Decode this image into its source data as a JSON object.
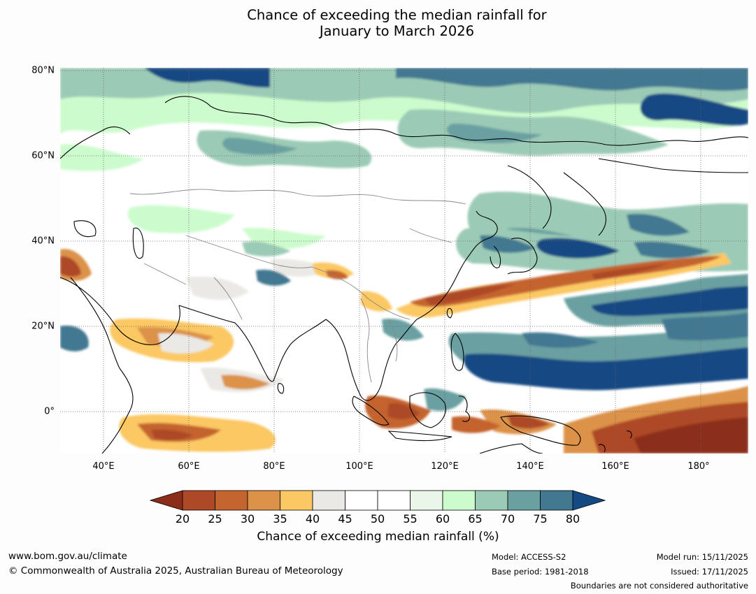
{
  "title": {
    "line1": "Chance of exceeding the median rainfall for",
    "line2": "January to March 2026"
  },
  "map": {
    "lat_labels": [
      "80°N",
      "60°N",
      "40°N",
      "20°N",
      "0°"
    ],
    "lon_labels": [
      "40°E",
      "60°E",
      "80°E",
      "100°E",
      "120°E",
      "140°E",
      "160°E",
      "180°"
    ]
  },
  "colorbar": {
    "ticks": [
      "20",
      "25",
      "30",
      "35",
      "40",
      "45",
      "50",
      "55",
      "60",
      "65",
      "70",
      "75",
      "80"
    ],
    "colors": {
      "under": "#8c2d1a",
      "bins": [
        "#ad4927",
        "#c4642f",
        "#dc9248",
        "#fbc864",
        "#ebe9e5",
        "#ffffff",
        "#ffffff",
        "#eaf6e9",
        "#ccfccd",
        "#9bcbb6",
        "#6ba0a1",
        "#437891"
      ],
      "over": "#144a84"
    },
    "label": "Chance of exceeding median rainfall (%)"
  },
  "footer": {
    "website": "www.bom.gov.au/climate",
    "copyright": "© Commonwealth of Australia 2025, Australian Bureau of Meteorology",
    "model": "Model: ACCESS-S2",
    "base_period": "Base period: 1981-2018",
    "model_run": "Model run: 15/11/2025",
    "issued": "Issued: 17/11/2025",
    "disclaimer": "Boundaries are not considered authoritative"
  }
}
